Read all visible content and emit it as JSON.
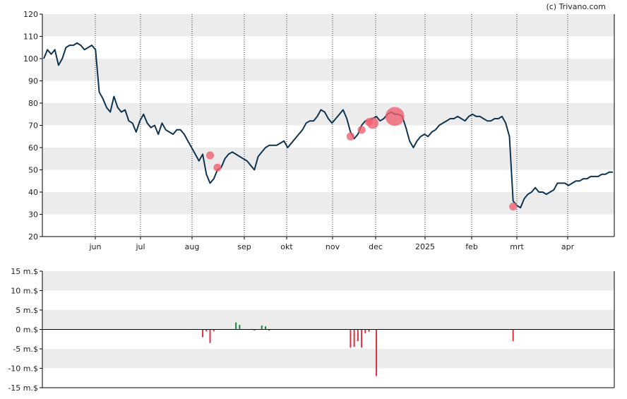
{
  "credit": "(c) Trivano.com",
  "colors": {
    "price_line": "#0f3451",
    "band": "#ececec",
    "grid_dotted": "#333333",
    "buy": "#1a8a3a",
    "sell": "#e03040",
    "bubble": "#f06070"
  },
  "chart_data": [
    {
      "type": "line",
      "ylim": [
        20,
        120
      ],
      "y_ticks": [
        "20",
        "30",
        "40",
        "50",
        "60",
        "70",
        "80",
        "90",
        "100",
        "110",
        "120"
      ],
      "x_ticks": [
        "jun",
        "jul",
        "aug",
        "sep",
        "okt",
        "nov",
        "dec",
        "2025",
        "feb",
        "mrt",
        "apr"
      ],
      "grid": "alternating horizontal bands, dotted vertical month lines",
      "series": [
        {
          "values": [
            100,
            104,
            102,
            104,
            97,
            100,
            105,
            106,
            106,
            107,
            106,
            104,
            105,
            106,
            104,
            85,
            82,
            78,
            76,
            83,
            78,
            76,
            77,
            72,
            71,
            67,
            72,
            75,
            71,
            69,
            70,
            66,
            71,
            68,
            67,
            66,
            68,
            68,
            66,
            63,
            60,
            57,
            54,
            57,
            48,
            44,
            46,
            50,
            51,
            55,
            57,
            58,
            57,
            56,
            55,
            54,
            52,
            50,
            56,
            58,
            60,
            61,
            61,
            61,
            62,
            63,
            60,
            62,
            64,
            66,
            68,
            71,
            72,
            72,
            74,
            77,
            76,
            73,
            71,
            73,
            75,
            77,
            73,
            67,
            64,
            66,
            70,
            72,
            72,
            73,
            74,
            72,
            73,
            75,
            76,
            75,
            75,
            74,
            69,
            63,
            60,
            63,
            65,
            66,
            65,
            67,
            68,
            70,
            71,
            72,
            73,
            73,
            74,
            73,
            72,
            74,
            75,
            74,
            74,
            73,
            72,
            72,
            73,
            73,
            74,
            71,
            65,
            36,
            34,
            33,
            37,
            39,
            40,
            42,
            40,
            40,
            39,
            40,
            41,
            44,
            44,
            44,
            43,
            44,
            45,
            45,
            46,
            46,
            47,
            47,
            47,
            48,
            48,
            49,
            49
          ]
        }
      ],
      "bubbles": [
        {
          "x": 45,
          "y": 56.5,
          "size": 1
        },
        {
          "x": 47,
          "y": 51,
          "size": 1
        },
        {
          "x": 83,
          "y": 65,
          "size": 1
        },
        {
          "x": 86,
          "y": 68,
          "size": 1
        },
        {
          "x": 88,
          "y": 71.5,
          "size": 1
        },
        {
          "x": 89,
          "y": 71,
          "size": 2
        },
        {
          "x": 95,
          "y": 74,
          "size": 4
        },
        {
          "x": 127,
          "y": 33.5,
          "size": 1
        }
      ]
    },
    {
      "type": "bar",
      "ylim": [
        -15,
        15
      ],
      "unit": "m.$",
      "y_ticks": [
        "15 m.$",
        "10 m.$",
        "5 m.$",
        "0 m.$",
        "-5 m.$",
        "-10 m.$",
        "-15 m.$"
      ],
      "values": [
        {
          "x": 43,
          "value": -2
        },
        {
          "x": 44,
          "value": -0.5
        },
        {
          "x": 45,
          "value": -3.5
        },
        {
          "x": 46,
          "value": -0.5
        },
        {
          "x": 52,
          "value": 1.8
        },
        {
          "x": 53,
          "value": 1.2
        },
        {
          "x": 57,
          "value": -0.3
        },
        {
          "x": 59,
          "value": 1.0
        },
        {
          "x": 60,
          "value": 0.8
        },
        {
          "x": 61,
          "value": -0.3
        },
        {
          "x": 83,
          "value": -4.7
        },
        {
          "x": 84,
          "value": -4.5
        },
        {
          "x": 85,
          "value": -3
        },
        {
          "x": 86,
          "value": -4.7
        },
        {
          "x": 87,
          "value": -1
        },
        {
          "x": 88,
          "value": -0.6
        },
        {
          "x": 90,
          "value": -12
        },
        {
          "x": 127,
          "value": -3
        }
      ]
    }
  ]
}
